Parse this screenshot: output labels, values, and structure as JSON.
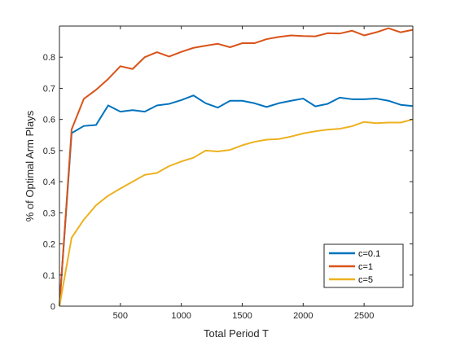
{
  "chart_data": {
    "type": "line",
    "title": "",
    "xlabel": "Total Period T",
    "ylabel": "% of Optimal Arm Plays",
    "xlim": [
      0,
      2900
    ],
    "ylim": [
      0,
      0.9
    ],
    "xticks": [
      500,
      1000,
      1500,
      2000,
      2500
    ],
    "yticks": [
      0,
      0.1,
      0.2,
      0.3,
      0.4,
      0.5,
      0.6,
      0.7,
      0.8
    ],
    "grid": false,
    "legend_position": "bottom-right",
    "x": [
      0,
      100,
      200,
      300,
      400,
      500,
      600,
      700,
      800,
      900,
      1000,
      1100,
      1200,
      1300,
      1400,
      1500,
      1600,
      1700,
      1800,
      1900,
      2000,
      2100,
      2200,
      2300,
      2400,
      2500,
      2600,
      2700,
      2800,
      2900
    ],
    "series": [
      {
        "name": "c=0.1",
        "color": "#0072BD",
        "values": [
          0,
          0.556,
          0.579,
          0.582,
          0.645,
          0.625,
          0.63,
          0.625,
          0.645,
          0.65,
          0.662,
          0.677,
          0.652,
          0.638,
          0.66,
          0.66,
          0.652,
          0.64,
          0.652,
          0.66,
          0.667,
          0.642,
          0.65,
          0.67,
          0.665,
          0.665,
          0.667,
          0.66,
          0.647,
          0.643
        ]
      },
      {
        "name": "c=1",
        "color": "#D95319",
        "values": [
          0,
          0.568,
          0.666,
          0.695,
          0.73,
          0.771,
          0.762,
          0.8,
          0.816,
          0.802,
          0.817,
          0.83,
          0.837,
          0.843,
          0.832,
          0.845,
          0.845,
          0.858,
          0.865,
          0.87,
          0.868,
          0.867,
          0.877,
          0.876,
          0.885,
          0.87,
          0.88,
          0.893,
          0.88,
          0.888
        ]
      },
      {
        "name": "c=5",
        "color": "#EDB120",
        "values": [
          0,
          0.22,
          0.278,
          0.324,
          0.355,
          0.378,
          0.4,
          0.422,
          0.428,
          0.45,
          0.465,
          0.477,
          0.5,
          0.497,
          0.502,
          0.517,
          0.528,
          0.535,
          0.537,
          0.545,
          0.555,
          0.562,
          0.567,
          0.57,
          0.578,
          0.592,
          0.588,
          0.59,
          0.59,
          0.6
        ]
      }
    ]
  }
}
